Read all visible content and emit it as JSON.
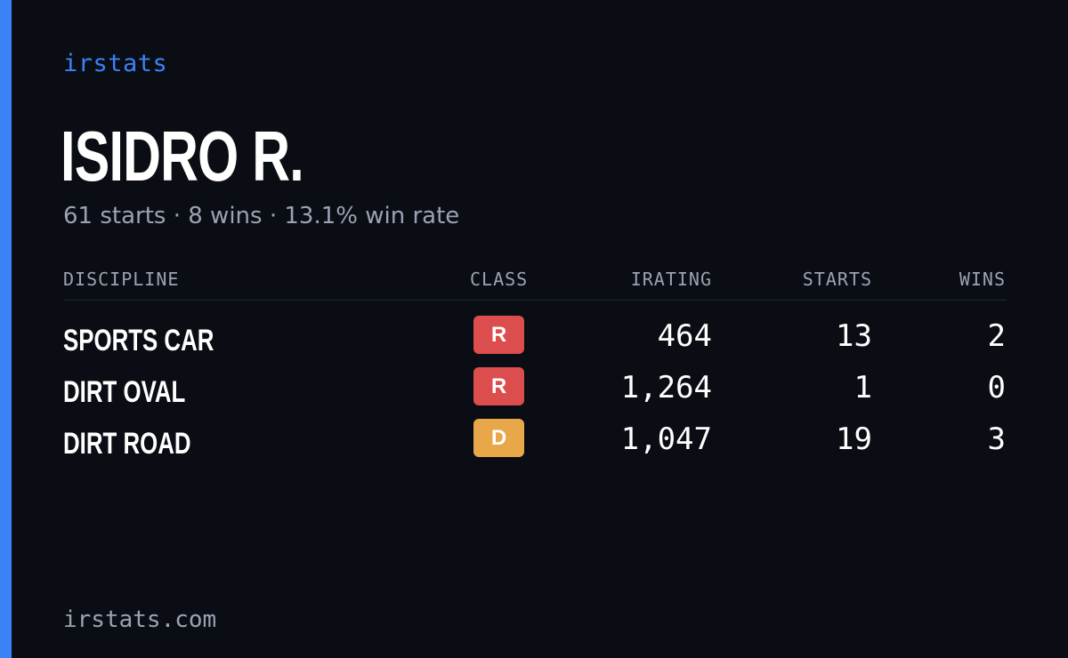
{
  "brand": "irstats",
  "driver": {
    "name": "ISIDRO R.",
    "summary": "61 starts · 8 wins · 13.1% win rate"
  },
  "table": {
    "headers": {
      "discipline": "DISCIPLINE",
      "class": "CLASS",
      "irating": "IRATING",
      "starts": "STARTS",
      "wins": "WINS"
    },
    "rows": [
      {
        "discipline": "SPORTS CAR",
        "class": "R",
        "class_color": "#dc4d4d",
        "irating": "464",
        "starts": "13",
        "wins": "2"
      },
      {
        "discipline": "DIRT OVAL",
        "class": "R",
        "class_color": "#dc4d4d",
        "irating": "1,264",
        "starts": "1",
        "wins": "0"
      },
      {
        "discipline": "DIRT ROAD",
        "class": "D",
        "class_color": "#e8a84a",
        "irating": "1,047",
        "starts": "19",
        "wins": "3"
      }
    ]
  },
  "footer": "irstats.com",
  "colors": {
    "accent": "#3b82f6",
    "background": "#0a0d14",
    "muted_text": "#9aa3b2"
  }
}
